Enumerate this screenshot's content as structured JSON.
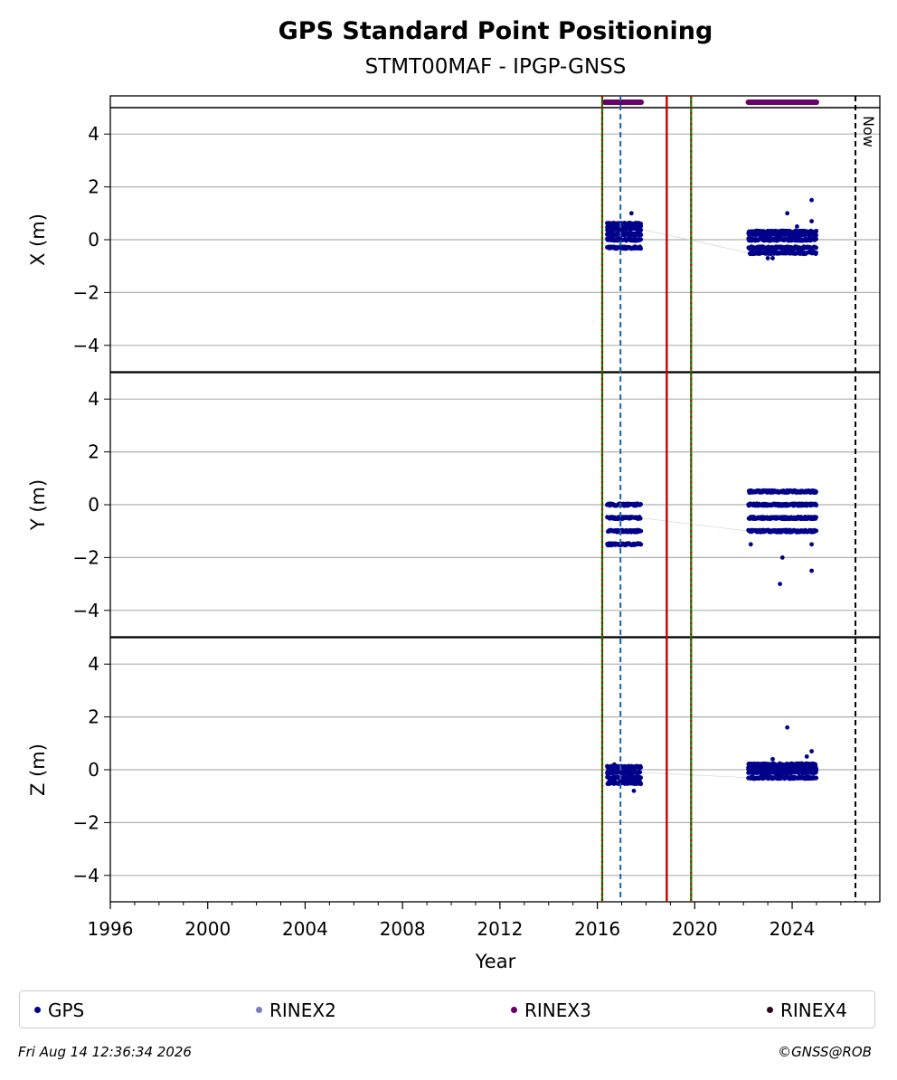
{
  "chart_data": {
    "type": "scatter",
    "title": "GPS Standard Point Positioning",
    "subtitle": "STMT00MAF - IPGP-GNSS",
    "xlabel": "Year",
    "xlim": [
      1996,
      2027.6
    ],
    "x_ticks": [
      1996,
      2000,
      2004,
      2008,
      2012,
      2016,
      2020,
      2024
    ],
    "x_tick_labels": [
      "1996",
      "2000",
      "2004",
      "2008",
      "2012",
      "2016",
      "2020",
      "2024"
    ],
    "grid": true,
    "vertical_markers": [
      {
        "x": 2016.2,
        "style": "green-red dotted"
      },
      {
        "x": 2016.95,
        "style": "blue dashed"
      },
      {
        "x": 2018.85,
        "style": "red solid"
      },
      {
        "x": 2019.85,
        "style": "green-red dotted"
      },
      {
        "x": 2026.6,
        "style": "black dashed",
        "label": "Now"
      }
    ],
    "rinex3_availability": [
      [
        2016.3,
        2017.8
      ],
      [
        2022.2,
        2025.0
      ]
    ],
    "panels": [
      {
        "ylabel": "X (m)",
        "ylim": [
          -5,
          5
        ],
        "y_ticks": [
          -4,
          -2,
          0,
          2,
          4
        ],
        "y_tick_labels": [
          "−4",
          "−2",
          "0",
          "2",
          "4"
        ],
        "series": [
          {
            "name": "GPS",
            "clusters": [
              {
                "x_range": [
                  2016.4,
                  2017.8
                ],
                "y_levels": [
                  -0.3,
                  0,
                  0.2,
                  0.4,
                  0.5,
                  0.6
                ],
                "outliers": [
                  [
                    2017.4,
                    1.0
                  ]
                ]
              },
              {
                "x_range": [
                  2022.2,
                  2025.0
                ],
                "y_levels": [
                  -0.5,
                  -0.3,
                  0,
                  0.2,
                  0.3
                ],
                "outliers": [
                  [
                    2023.0,
                    -0.7
                  ],
                  [
                    2023.8,
                    1.0
                  ],
                  [
                    2024.8,
                    1.5
                  ],
                  [
                    2024.8,
                    0.7
                  ],
                  [
                    2024.2,
                    0.5
                  ],
                  [
                    2023.2,
                    -0.7
                  ]
                ]
              }
            ]
          }
        ]
      },
      {
        "ylabel": "Y (m)",
        "ylim": [
          -5,
          5
        ],
        "y_ticks": [
          -4,
          -2,
          0,
          2,
          4
        ],
        "y_tick_labels": [
          "−4",
          "−2",
          "0",
          "2",
          "4"
        ],
        "series": [
          {
            "name": "GPS",
            "clusters": [
              {
                "x_range": [
                  2016.4,
                  2017.8
                ],
                "y_levels": [
                  -1.5,
                  -1.0,
                  -0.5,
                  0
                ],
                "outliers": []
              },
              {
                "x_range": [
                  2022.2,
                  2025.0
                ],
                "y_levels": [
                  -1.0,
                  -0.5,
                  0,
                  0.5
                ],
                "outliers": [
                  [
                    2022.3,
                    -1.5
                  ],
                  [
                    2023.6,
                    -2.0
                  ],
                  [
                    2023.5,
                    -3.0
                  ],
                  [
                    2024.8,
                    -2.5
                  ],
                  [
                    2024.8,
                    -1.5
                  ]
                ]
              }
            ]
          }
        ]
      },
      {
        "ylabel": "Z (m)",
        "ylim": [
          -5,
          5
        ],
        "y_ticks": [
          -4,
          -2,
          0,
          2,
          4
        ],
        "y_tick_labels": [
          "−4",
          "−2",
          "0",
          "2",
          "4"
        ],
        "series": [
          {
            "name": "GPS",
            "clusters": [
              {
                "x_range": [
                  2016.4,
                  2017.8
                ],
                "y_levels": [
                  -0.5,
                  -0.3,
                  -0.1,
                  0.1
                ],
                "outliers": [
                  [
                    2017.5,
                    -0.8
                  ],
                  [
                    2016.7,
                    0.2
                  ]
                ]
              },
              {
                "x_range": [
                  2022.2,
                  2025.0
                ],
                "y_levels": [
                  -0.3,
                  -0.1,
                  0,
                  0.1,
                  0.2
                ],
                "outliers": [
                  [
                    2023.8,
                    1.6
                  ],
                  [
                    2024.8,
                    0.7
                  ],
                  [
                    2024.6,
                    0.5
                  ],
                  [
                    2023.2,
                    0.4
                  ]
                ]
              }
            ]
          }
        ]
      }
    ],
    "legend": [
      {
        "name": "GPS",
        "color": "#00008b"
      },
      {
        "name": "RINEX2",
        "color": "#7b7bbf"
      },
      {
        "name": "RINEX3",
        "color": "#660066"
      },
      {
        "name": "RINEX4",
        "color": "#2a0a1e"
      }
    ],
    "legend_position": "bottom"
  },
  "footer": {
    "timestamp": "Fri Aug 14 12:36:34 2026",
    "credit": "©GNSS@ROB"
  },
  "colors": {
    "gps_points": "#00008b",
    "rinex3_bar": "#660066",
    "grid": "#b0b0b0",
    "green_marker": "#008000",
    "red_marker": "#cc0000",
    "blue_marker": "#1f5fa8"
  }
}
